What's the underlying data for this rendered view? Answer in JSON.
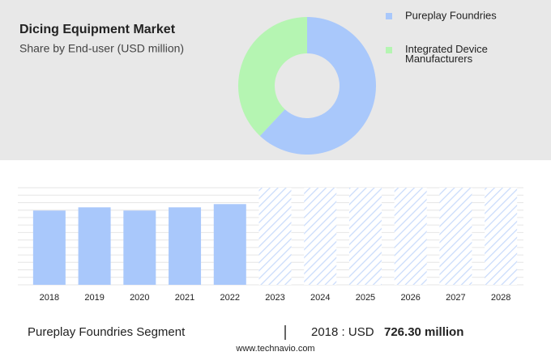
{
  "chart_data": [
    {
      "type": "pie",
      "donut": true,
      "title": "Dicing Equipment Market",
      "subtitle": "Share by End-user (USD million)",
      "categories": [
        "Pureplay Foundries",
        "Integrated Device Manufacturers"
      ],
      "values": [
        62,
        38
      ],
      "colors": [
        "#a9c8fb",
        "#b5f5b2"
      ],
      "legend": "top-right"
    },
    {
      "type": "bar",
      "categories": [
        "2018",
        "2019",
        "2020",
        "2021",
        "2022",
        "2023",
        "2024",
        "2025",
        "2026",
        "2027",
        "2028"
      ],
      "values": [
        726.3,
        757.9,
        726.3,
        757.9,
        789.5,
        null,
        null,
        null,
        null,
        null,
        null
      ],
      "color": "#a9c8fb",
      "ylim": [
        0,
        950
      ],
      "grid": true
    }
  ],
  "footer": {
    "segment": "Pureplay Foundries Segment",
    "label": "2018 : USD",
    "value": "726.30 million",
    "source": "www.technavio.com"
  }
}
